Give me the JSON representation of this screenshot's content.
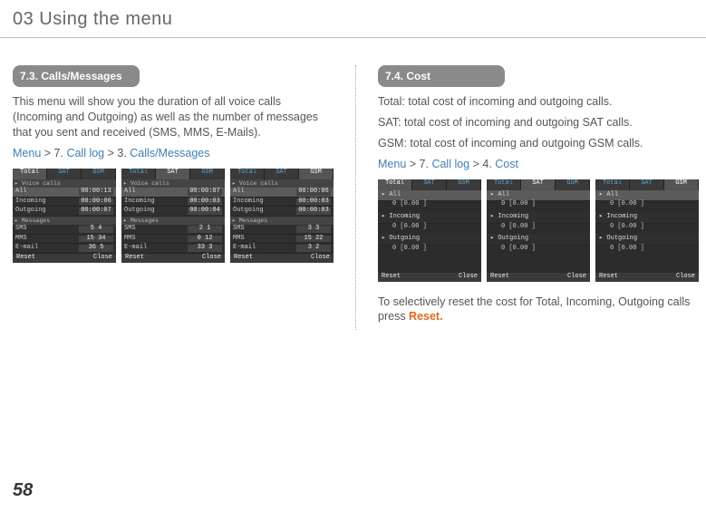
{
  "chapter": "03 Using the menu",
  "pageNumber": "58",
  "left": {
    "heading": "7.3. Calls/Messages",
    "body1": "This menu will show you the duration of all voice calls (Incoming and Outgoing) as well as the number of messages that you sent and received (SMS, MMS, E-Mails).",
    "nav_menu": "Menu",
    "nav_s1": " > 7. ",
    "nav_calllog": "Call log",
    "nav_s2": " > 3. ",
    "nav_last": "Calls/Messages",
    "shots": [
      {
        "tabs": [
          "Total",
          "SAT",
          "GSM"
        ],
        "active": 0,
        "groups": [
          {
            "head": "Voice calls",
            "rows": [
              {
                "k": "All",
                "v": "00:00:13",
                "sel": true
              },
              {
                "k": "Incoming",
                "v": "00:00:06"
              },
              {
                "k": "Outgoing",
                "v": "00:00:07"
              }
            ]
          },
          {
            "head": "Messages",
            "rows": [
              {
                "k": "SMS",
                "v": "5    4"
              },
              {
                "k": "MMS",
                "v": "15  34"
              },
              {
                "k": "E-mail",
                "v": "36   5"
              }
            ]
          }
        ],
        "soft": [
          "Reset",
          "Close"
        ]
      },
      {
        "tabs": [
          "Total",
          "SAT",
          "GSM"
        ],
        "active": 1,
        "groups": [
          {
            "head": "Voice calls",
            "rows": [
              {
                "k": "All",
                "v": "00:00:07",
                "sel": true
              },
              {
                "k": "Incoming",
                "v": "00:00:03"
              },
              {
                "k": "Outgoing",
                "v": "00:00:04"
              }
            ]
          },
          {
            "head": "Messages",
            "rows": [
              {
                "k": "SMS",
                "v": "2    1"
              },
              {
                "k": "MMS",
                "v": "0   12"
              },
              {
                "k": "E-mail",
                "v": "33   3"
              }
            ]
          }
        ],
        "soft": [
          "Reset",
          "Close"
        ]
      },
      {
        "tabs": [
          "Total",
          "SAT",
          "GSM"
        ],
        "active": 2,
        "groups": [
          {
            "head": "Voice calls",
            "rows": [
              {
                "k": "All",
                "v": "00:00:06",
                "sel": true
              },
              {
                "k": "Incoming",
                "v": "00:00:03"
              },
              {
                "k": "Outgoing",
                "v": "00:00:03"
              }
            ]
          },
          {
            "head": "Messages",
            "rows": [
              {
                "k": "SMS",
                "v": "3    3"
              },
              {
                "k": "MMS",
                "v": "15  22"
              },
              {
                "k": "E-mail",
                "v": "3    2"
              }
            ]
          }
        ],
        "soft": [
          "Reset",
          "Close"
        ]
      }
    ]
  },
  "right": {
    "heading": "7.4. Cost",
    "line1": "Total: total cost of incoming and outgoing calls.",
    "line2": "SAT: total cost of incoming and outgoing SAT calls.",
    "line3": "GSM: total cost of incoming and outgoing GSM calls.",
    "nav_menu": "Menu",
    "nav_s1": " > 7. ",
    "nav_calllog": "Call log",
    "nav_s2": " > 4. ",
    "nav_last": "Cost",
    "footer_a": "To selectively reset the cost for Total, Incoming, Outgoing calls press ",
    "footer_reset": "Reset.",
    "shots": [
      {
        "tabs": [
          "Total",
          "SAT",
          "GSM"
        ],
        "active": 0,
        "costs": [
          {
            "k": "All",
            "v": "0 [0.00 ]",
            "sel": true
          },
          {
            "k": "Incoming",
            "v": "0 [0.00 ]"
          },
          {
            "k": "Outgoing",
            "v": "0 [0.00 ]"
          }
        ],
        "soft": [
          "Reset",
          "Close"
        ]
      },
      {
        "tabs": [
          "Total",
          "SAT",
          "GSM"
        ],
        "active": 1,
        "costs": [
          {
            "k": "All",
            "v": "0 [0.00 ]",
            "sel": true
          },
          {
            "k": "Incoming",
            "v": "0 [0.00 ]"
          },
          {
            "k": "Outgoing",
            "v": "0 [0.00 ]"
          }
        ],
        "soft": [
          "Reset",
          "Close"
        ]
      },
      {
        "tabs": [
          "Total",
          "SAT",
          "GSM"
        ],
        "active": 2,
        "costs": [
          {
            "k": "All",
            "v": "0 [0.00 ]",
            "sel": true
          },
          {
            "k": "Incoming",
            "v": "0 [0.00 ]"
          },
          {
            "k": "Outgoing",
            "v": "0 [0.00 ]"
          }
        ],
        "soft": [
          "Reset",
          "Close"
        ]
      }
    ]
  }
}
